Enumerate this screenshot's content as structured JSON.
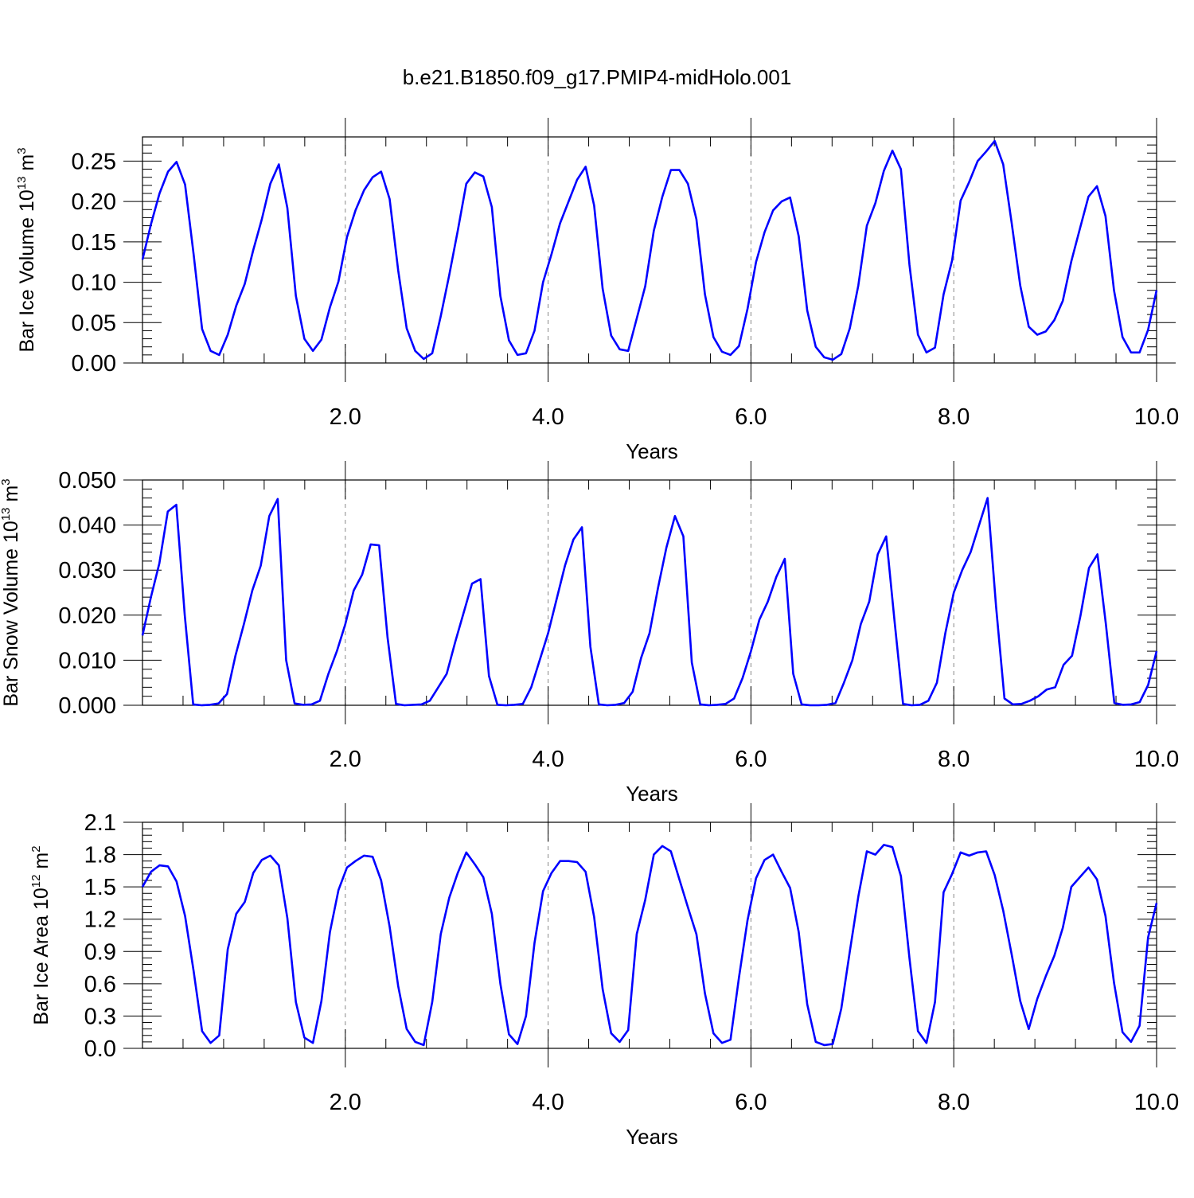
{
  "figure": {
    "title": "b.e21.B1850.f09_g17.PMIP4-midHolo.001"
  },
  "chart_data": [
    {
      "type": "line",
      "ylabel": "Bar Ice Volume 10",
      "ylabel_exp": "13",
      "ylabel_unit": " m",
      "ylabel_unit_exp": "3",
      "xlabel": "Years",
      "xlim": [
        0.0,
        10.0
      ],
      "ylim": [
        0.0,
        0.28
      ],
      "yticks": [
        0.0,
        0.05,
        0.1,
        0.15,
        0.2,
        0.25
      ],
      "ytick_labels": [
        "0.00",
        "0.05",
        "0.10",
        "0.15",
        "0.20",
        "0.25"
      ],
      "xticks": [
        2.0,
        4.0,
        6.0,
        8.0,
        10.0
      ],
      "xtick_labels": [
        "2.0",
        "4.0",
        "6.0",
        "8.0",
        "10.0"
      ],
      "grid": "vertical dashed at major x ticks",
      "line_color": "#0000ff",
      "series": [
        {
          "values": [
            0.128,
            0.172,
            0.21,
            0.237,
            0.249,
            0.221,
            0.135,
            0.042,
            0.015,
            0.01,
            0.035,
            0.071,
            0.098,
            0.14,
            0.178,
            0.222,
            0.246,
            0.192,
            0.083,
            0.03,
            0.015,
            0.029,
            0.069,
            0.101,
            0.156,
            0.189,
            0.214,
            0.23,
            0.237,
            0.203,
            0.115,
            0.043,
            0.015,
            0.005,
            0.012,
            0.058,
            0.109,
            0.164,
            0.222,
            0.236,
            0.231,
            0.193,
            0.083,
            0.028,
            0.01,
            0.012,
            0.04,
            0.1,
            0.135,
            0.173,
            0.2,
            0.227,
            0.243,
            0.195,
            0.092,
            0.034,
            0.017,
            0.015,
            0.055,
            0.095,
            0.164,
            0.206,
            0.239,
            0.239,
            0.222,
            0.178,
            0.085,
            0.032,
            0.014,
            0.01,
            0.021,
            0.067,
            0.125,
            0.162,
            0.189,
            0.2,
            0.205,
            0.157,
            0.065,
            0.02,
            0.007,
            0.004,
            0.011,
            0.043,
            0.096,
            0.17,
            0.198,
            0.238,
            0.263,
            0.24,
            0.122,
            0.035,
            0.013,
            0.019,
            0.085,
            0.127,
            0.201,
            0.224,
            0.25,
            0.262,
            0.275,
            0.246,
            0.173,
            0.096,
            0.045,
            0.035,
            0.039,
            0.053,
            0.077,
            0.126,
            0.166,
            0.206,
            0.219,
            0.182,
            0.09,
            0.032,
            0.013,
            0.013,
            0.041,
            0.09
          ]
        }
      ]
    },
    {
      "type": "line",
      "ylabel": "Bar Snow Volume 10",
      "ylabel_exp": "13",
      "ylabel_unit": " m",
      "ylabel_unit_exp": "3",
      "xlabel": "Years",
      "xlim": [
        0.0,
        10.0
      ],
      "ylim": [
        0.0,
        0.05
      ],
      "yticks": [
        0.0,
        0.01,
        0.02,
        0.03,
        0.04,
        0.05
      ],
      "ytick_labels": [
        "0.000",
        "0.010",
        "0.020",
        "0.030",
        "0.040",
        "0.050"
      ],
      "xticks": [
        2.0,
        4.0,
        6.0,
        8.0,
        10.0
      ],
      "xtick_labels": [
        "2.0",
        "4.0",
        "6.0",
        "8.0",
        "10.0"
      ],
      "grid": "vertical dashed at major x ticks",
      "line_color": "#0000ff",
      "series": [
        {
          "values": [
            0.0155,
            0.024,
            0.0315,
            0.043,
            0.0445,
            0.02,
            0.0002,
            0.0,
            0.0001,
            0.0004,
            0.0025,
            0.011,
            0.018,
            0.0255,
            0.031,
            0.042,
            0.0458,
            0.01,
            0.0004,
            0.0001,
            0.0002,
            0.001,
            0.007,
            0.012,
            0.018,
            0.0255,
            0.029,
            0.0357,
            0.0355,
            0.015,
            0.0003,
            0.0,
            0.0001,
            0.0002,
            0.001,
            0.004,
            0.007,
            0.014,
            0.0205,
            0.027,
            0.028,
            0.0065,
            0.0001,
            0.0,
            0.0001,
            0.0003,
            0.004,
            0.01,
            0.016,
            0.0235,
            0.031,
            0.0368,
            0.0395,
            0.013,
            0.0002,
            0.0,
            0.0001,
            0.0005,
            0.003,
            0.0105,
            0.016,
            0.026,
            0.035,
            0.042,
            0.0375,
            0.0095,
            0.0002,
            0.0,
            0.0001,
            0.0003,
            0.0015,
            0.006,
            0.012,
            0.019,
            0.023,
            0.0285,
            0.0325,
            0.007,
            0.0002,
            0.0,
            0.0,
            0.0001,
            0.0005,
            0.005,
            0.01,
            0.018,
            0.023,
            0.0335,
            0.0375,
            0.0185,
            0.0003,
            0.0,
            0.0001,
            0.001,
            0.005,
            0.016,
            0.025,
            0.03,
            0.034,
            0.04,
            0.046,
            0.022,
            0.0015,
            0.0002,
            0.0003,
            0.001,
            0.002,
            0.0035,
            0.004,
            0.009,
            0.011,
            0.02,
            0.0305,
            0.0335,
            0.018,
            0.0005,
            0.0001,
            0.0002,
            0.0007,
            0.0045,
            0.012
          ]
        }
      ]
    },
    {
      "type": "line",
      "ylabel": "Bar Ice Area 10",
      "ylabel_exp": "12",
      "ylabel_unit": " m",
      "ylabel_unit_exp": "2",
      "xlabel": "Years",
      "xlim": [
        0.0,
        10.0
      ],
      "ylim": [
        0.0,
        2.1
      ],
      "yticks": [
        0.0,
        0.3,
        0.6,
        0.9,
        1.2,
        1.5,
        1.8,
        2.1
      ],
      "ytick_labels": [
        "0.0",
        "0.3",
        "0.6",
        "0.9",
        "1.2",
        "1.5",
        "1.8",
        "2.1"
      ],
      "xticks": [
        2.0,
        4.0,
        6.0,
        8.0,
        10.0
      ],
      "xtick_labels": [
        "2.0",
        "4.0",
        "6.0",
        "8.0",
        "10.0"
      ],
      "grid": "vertical dashed at major x ticks",
      "line_color": "#0000ff",
      "series": [
        {
          "values": [
            1.5,
            1.64,
            1.7,
            1.69,
            1.55,
            1.23,
            0.72,
            0.16,
            0.05,
            0.12,
            0.92,
            1.25,
            1.36,
            1.63,
            1.75,
            1.79,
            1.7,
            1.21,
            0.43,
            0.1,
            0.05,
            0.44,
            1.08,
            1.47,
            1.68,
            1.74,
            1.79,
            1.78,
            1.56,
            1.13,
            0.58,
            0.18,
            0.06,
            0.03,
            0.43,
            1.06,
            1.4,
            1.63,
            1.82,
            1.71,
            1.59,
            1.25,
            0.6,
            0.13,
            0.04,
            0.3,
            0.98,
            1.46,
            1.63,
            1.74,
            1.74,
            1.73,
            1.64,
            1.22,
            0.55,
            0.14,
            0.06,
            0.17,
            1.06,
            1.38,
            1.8,
            1.88,
            1.83,
            1.57,
            1.31,
            1.06,
            0.51,
            0.14,
            0.05,
            0.08,
            0.66,
            1.19,
            1.58,
            1.75,
            1.8,
            1.64,
            1.49,
            1.08,
            0.41,
            0.06,
            0.03,
            0.04,
            0.37,
            0.9,
            1.41,
            1.83,
            1.8,
            1.89,
            1.87,
            1.6,
            0.84,
            0.16,
            0.05,
            0.43,
            1.45,
            1.62,
            1.82,
            1.79,
            1.82,
            1.83,
            1.61,
            1.28,
            0.87,
            0.44,
            0.18,
            0.46,
            0.67,
            0.86,
            1.12,
            1.5,
            1.59,
            1.68,
            1.57,
            1.23,
            0.61,
            0.15,
            0.06,
            0.21,
            1.03,
            1.35
          ]
        }
      ]
    }
  ]
}
